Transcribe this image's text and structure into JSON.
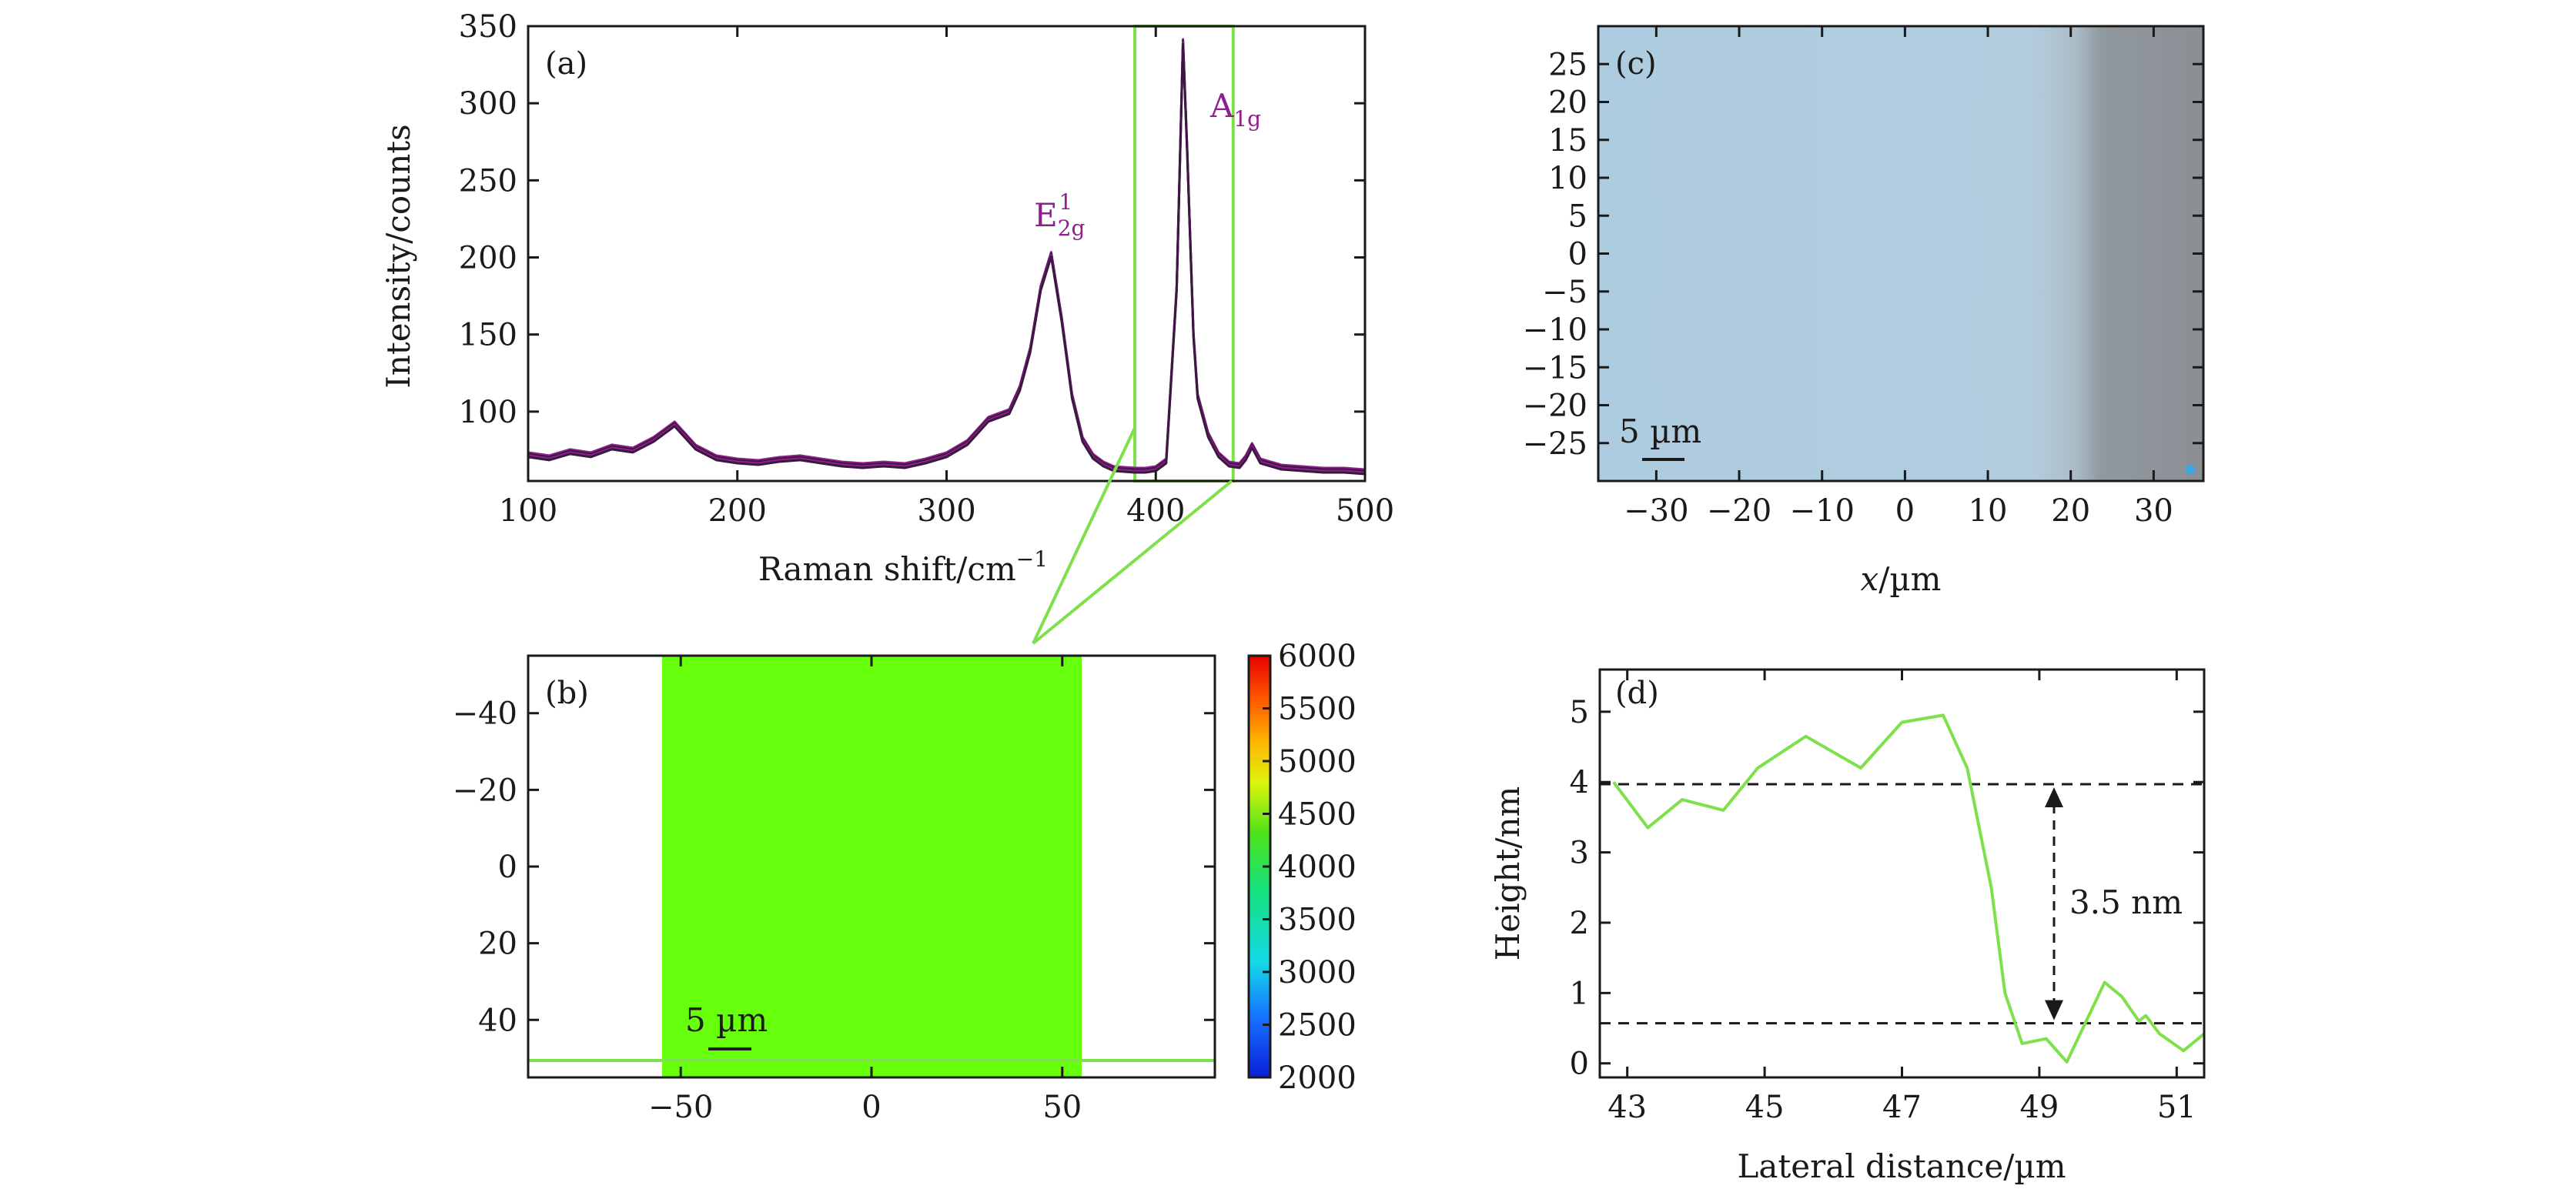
{
  "chart_data": [
    {
      "panel": "(a)",
      "type": "line",
      "xlabel": "Raman shift/cm",
      "xlabel_sup": "−1",
      "ylabel": "Intensity/counts",
      "xlim": [
        100,
        500
      ],
      "ylim": [
        55,
        350
      ],
      "xticks": [
        100,
        200,
        300,
        400,
        500
      ],
      "yticks": [
        100,
        150,
        200,
        250,
        300,
        350
      ],
      "series_color": "#8e1f8c",
      "series": [
        {
          "name": "spectrum",
          "x": [
            100,
            110,
            120,
            130,
            140,
            150,
            160,
            170,
            180,
            190,
            200,
            210,
            220,
            230,
            240,
            250,
            260,
            270,
            280,
            290,
            300,
            310,
            320,
            330,
            335,
            340,
            345,
            350,
            355,
            360,
            365,
            370,
            375,
            380,
            390,
            395,
            400,
            405,
            410,
            413,
            415,
            418,
            420,
            425,
            430,
            435,
            440,
            443,
            446,
            450,
            460,
            470,
            480,
            490,
            500
          ],
          "y": [
            72,
            70,
            74,
            72,
            77,
            75,
            82,
            92,
            77,
            70,
            68,
            67,
            69,
            70,
            68,
            66,
            65,
            66,
            65,
            68,
            72,
            80,
            95,
            100,
            115,
            140,
            180,
            202,
            160,
            110,
            82,
            71,
            66,
            63,
            62,
            62,
            63,
            68,
            180,
            340,
            270,
            150,
            110,
            85,
            72,
            66,
            65,
            70,
            78,
            68,
            64,
            63,
            62,
            62,
            61
          ]
        }
      ],
      "annotations": [
        {
          "text": "E",
          "sub": "2g",
          "sup": "1",
          "x": 350,
          "y": 210
        },
        {
          "text": "A",
          "sub": "1g",
          "x": 425,
          "y": 318
        }
      ],
      "highlight": {
        "x_range": [
          390,
          437
        ],
        "color": "#7ee04a"
      }
    },
    {
      "panel": "(b)",
      "type": "heatmap",
      "xlim": [
        -90,
        90
      ],
      "ylim": [
        55,
        -55
      ],
      "xticks": [
        -50,
        0,
        50
      ],
      "yticks": [
        -40,
        -20,
        0,
        20,
        40
      ],
      "filled_region": {
        "x": [
          -55,
          55
        ],
        "y": [
          -55,
          55
        ],
        "value": 4200
      },
      "colorbar": {
        "min": 2000,
        "max": 6000,
        "ticks": [
          2000,
          2500,
          3000,
          3500,
          4000,
          4500,
          5000,
          5500,
          6000
        ]
      },
      "scalebar": "5 µm"
    },
    {
      "panel": "(c)",
      "type": "image",
      "xlabel_italic": "x",
      "xlabel": "/µm",
      "xlim": [
        -37,
        36
      ],
      "ylim": [
        -30,
        30
      ],
      "xticks": [
        -30,
        -20,
        -10,
        0,
        10,
        20,
        30
      ],
      "yticks": [
        -25,
        -20,
        -15,
        -10,
        -5,
        0,
        5,
        10,
        15,
        20,
        25
      ],
      "scalebar": "5 µm"
    },
    {
      "panel": "(d)",
      "type": "line",
      "xlabel": "Lateral distance/µm",
      "ylabel": "Height/nm",
      "xlim": [
        42.6,
        51.4
      ],
      "ylim": [
        -0.2,
        5.6
      ],
      "xticks": [
        43,
        45,
        47,
        49,
        51
      ],
      "yticks": [
        0,
        1,
        2,
        3,
        4,
        5
      ],
      "series_color": "#7ee04a",
      "series": [
        {
          "name": "profile",
          "x": [
            42.8,
            43.3,
            43.8,
            44.4,
            44.9,
            45.6,
            46.4,
            47.0,
            47.6,
            47.95,
            48.3,
            48.5,
            48.75,
            49.1,
            49.4,
            49.95,
            50.2,
            50.45,
            50.55,
            50.75,
            51.1,
            51.4
          ],
          "y": [
            4.0,
            3.35,
            3.75,
            3.6,
            4.2,
            4.65,
            4.2,
            4.85,
            4.95,
            4.2,
            2.5,
            1.0,
            0.28,
            0.35,
            0.02,
            1.15,
            0.95,
            0.6,
            0.68,
            0.42,
            0.18,
            0.42
          ]
        }
      ],
      "reference_lines": [
        3.97,
        0.57
      ],
      "annotation": "3.5 nm"
    }
  ]
}
